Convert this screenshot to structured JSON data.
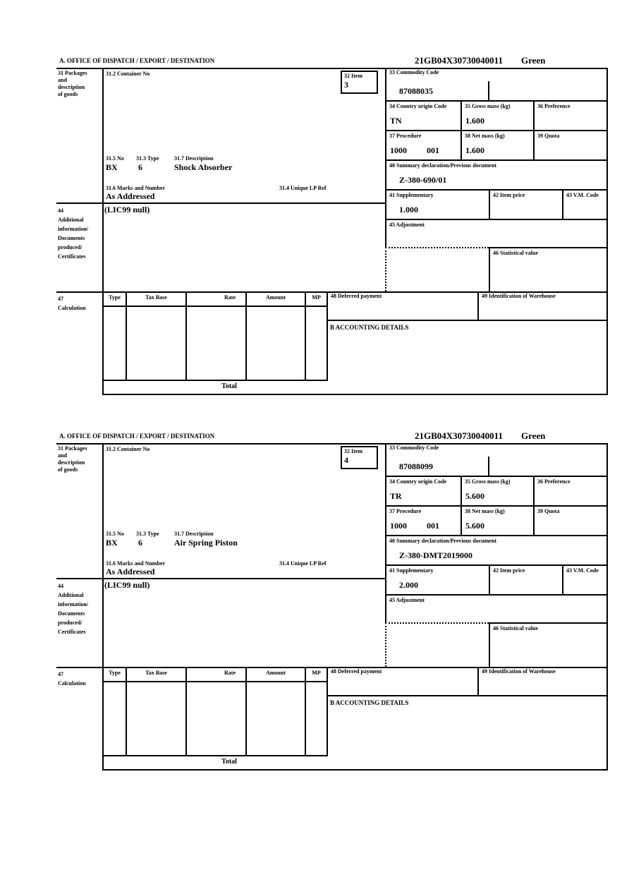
{
  "labels": {
    "section_a": "A.  OFFICE OF DISPATCH / EXPORT / DESTINATION",
    "box31_lines": [
      "31 Packages",
      "and",
      "description",
      "of goods"
    ],
    "c31_2": "31.2 Container No",
    "c32": "32 Item",
    "c31_5": "31.5 No",
    "c31_3": "31.3 Type",
    "c31_7": "31.7 Description",
    "c31_6": "31.6 Marks and Number",
    "c31_4": "31.4 Unique LP Ref",
    "c33": "33 Commodity Code",
    "c34": "34 Country origin Code",
    "c35": "35 Gross mass (kg)",
    "c36": "36 Preference",
    "c37": "37 Procedure",
    "c38": "38 Net mass (kg)",
    "c39": "39 Quota",
    "c40": "40 Summary declaration/Previous document",
    "c41": "41 Supplementary",
    "c42": "42 Item price",
    "c43": "43 V.M. Code",
    "box44_lines": [
      "44",
      "Additional",
      "information/",
      "Documents",
      "produced/",
      "Certificates"
    ],
    "c45": "45 Adjustment",
    "c46": "46 Statistical value",
    "box47_lines": [
      "47",
      "Calculation"
    ],
    "table_headers": [
      "Type",
      "Tax Base",
      "Rate",
      "Amount",
      "MP"
    ],
    "c48": "48 Deferred payment",
    "c49": "49 Identification of Warehouse",
    "b_section": "B ACCOUNTING DETAILS",
    "total": "Total"
  },
  "forms": [
    {
      "reference": "21GB04X30730040011",
      "routing": "Green",
      "item_no": "3",
      "commodity_code": "87088035",
      "country_origin": "TN",
      "gross_mass": "1.600",
      "procedure": "1000",
      "procedure_second": "001",
      "net_mass": "1.600",
      "previous_document": "Z-380-690/01",
      "supplementary_units": "1.000",
      "packages_no": "BX",
      "packages_type": "6",
      "goods_description": "Shock Absorber",
      "marks_numbers": "As Addressed",
      "additional_information": "(LIC99 null)"
    },
    {
      "reference": "21GB04X30730040011",
      "routing": "Green",
      "item_no": "4",
      "commodity_code": "87088099",
      "country_origin": "TR",
      "gross_mass": "5.600",
      "procedure": "1000",
      "procedure_second": "001",
      "net_mass": "5.600",
      "previous_document": "Z-380-DMT2019000",
      "supplementary_units": "2.000",
      "packages_no": "BX",
      "packages_type": "6",
      "goods_description": "Air Spring Piston",
      "marks_numbers": "As Addressed",
      "additional_information": "(LIC99 null)"
    }
  ]
}
